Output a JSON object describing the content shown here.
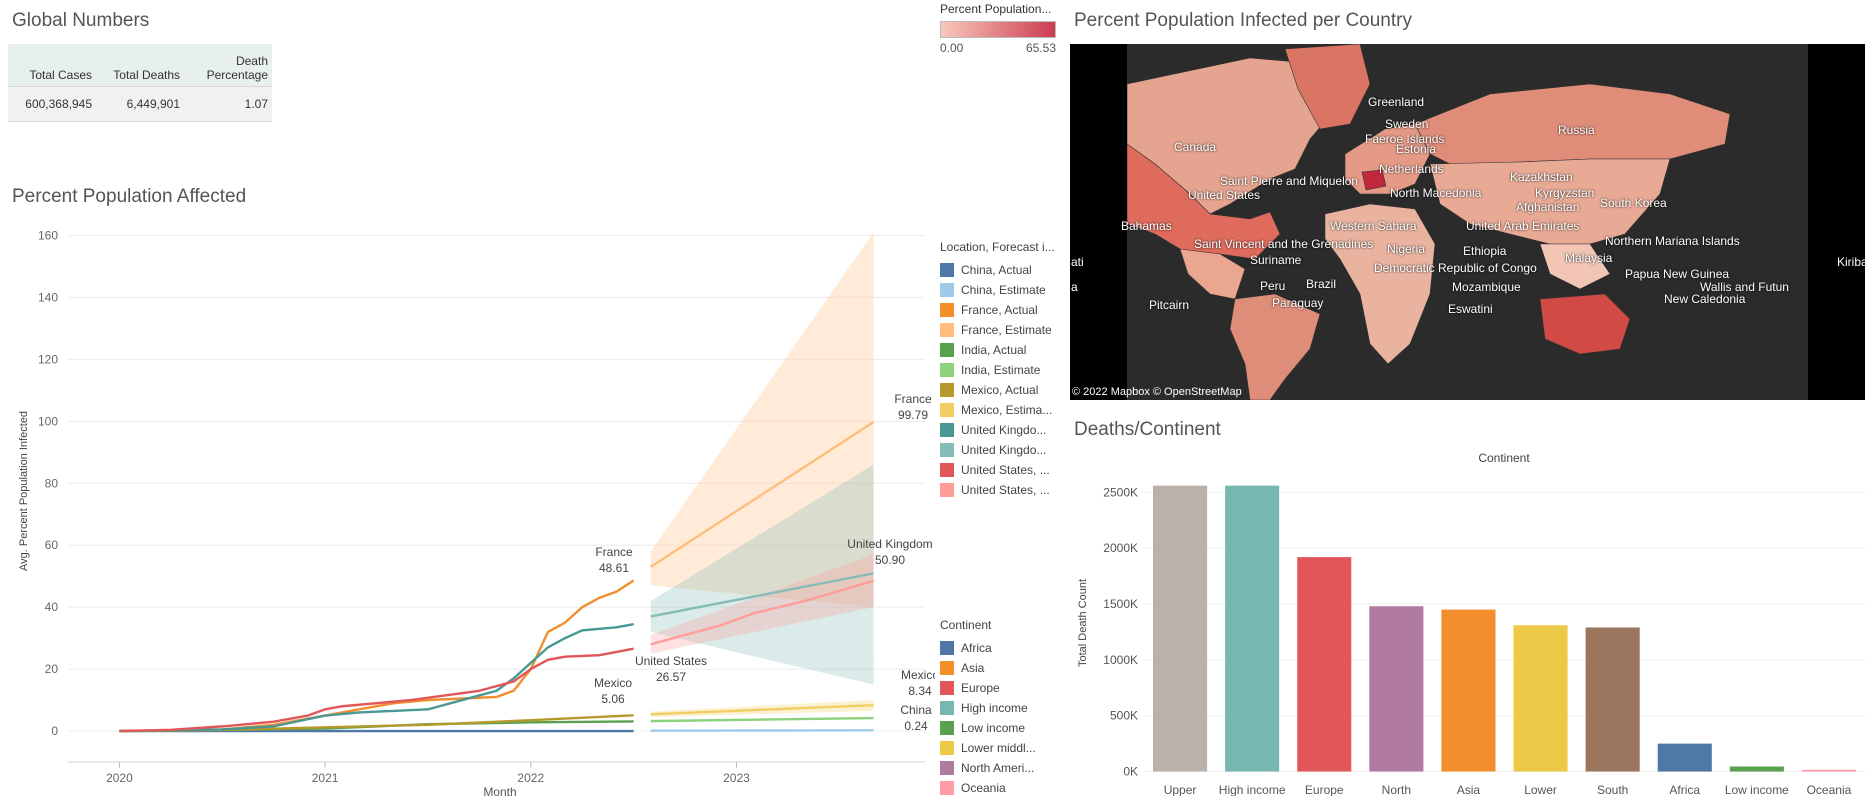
{
  "global_numbers": {
    "title": "Global Numbers",
    "headers": [
      "Total Cases",
      "Total Deaths",
      "Death Percentage"
    ],
    "values": [
      "600,368,945",
      "6,449,901",
      "1.07"
    ]
  },
  "pct_legend": {
    "title": "Percent Population...",
    "min": "0.00",
    "max": "65.53",
    "colors": [
      "#f8c9bd",
      "#cc3d52"
    ]
  },
  "location_legend": {
    "title": "Location, Forecast i...",
    "items": [
      {
        "label": "China, Actual",
        "color": "#4e79a7"
      },
      {
        "label": "China, Estimate",
        "color": "#a0cbe8"
      },
      {
        "label": "France, Actual",
        "color": "#f28e2b"
      },
      {
        "label": "France, Estimate",
        "color": "#ffbe7d"
      },
      {
        "label": "India, Actual",
        "color": "#59a14f"
      },
      {
        "label": "India, Estimate",
        "color": "#8cd17d"
      },
      {
        "label": "Mexico, Actual",
        "color": "#b6992d"
      },
      {
        "label": "Mexico, Estima...",
        "color": "#f1ce63"
      },
      {
        "label": "United Kingdo...",
        "color": "#499894"
      },
      {
        "label": "United Kingdo...",
        "color": "#86bcb6"
      },
      {
        "label": "United States, ...",
        "color": "#e15759"
      },
      {
        "label": "United States, ...",
        "color": "#ff9d9a"
      }
    ]
  },
  "continent_legend": {
    "title": "Continent",
    "items": [
      {
        "label": "Africa",
        "color": "#4e79a7"
      },
      {
        "label": "Asia",
        "color": "#f28e2b"
      },
      {
        "label": "Europe",
        "color": "#e15759"
      },
      {
        "label": "High income",
        "color": "#76b7b2"
      },
      {
        "label": "Low income",
        "color": "#59a14f"
      },
      {
        "label": "Lower middl...",
        "color": "#edc948"
      },
      {
        "label": "North Ameri...",
        "color": "#b07aa1"
      },
      {
        "label": "Oceania",
        "color": "#ff9da7"
      }
    ]
  },
  "map": {
    "title": "Percent Population Infected per Country",
    "credit": "© 2022 Mapbox  © OpenStreetMap",
    "labels": [
      "Greenland",
      "Sweden",
      "Faeroe Islands",
      "Estonia",
      "Russia",
      "Canada",
      "Netherlands",
      "Kazakhstan",
      "Saint Pierre and Miquelon",
      "Kyrgyzstan",
      "North Macedonia",
      "United States",
      "Afghanistan",
      "South Korea",
      "Bahamas",
      "Western Sahara",
      "United Arab Emirates",
      "Saint Vincent and the Grenadines",
      "Nigeria",
      "Ethiopia",
      "Northern Mariana Islands",
      "Suriname",
      "Malaysia",
      "Democratic Republic of Congo",
      "ati",
      "Kiriba",
      "Papua New Guinea",
      "a",
      "Peru",
      "Brazil",
      "Mozambique",
      "Wallis and Futun",
      "Paraguay",
      "New Caledonia",
      "Pitcairn",
      "Eswatini"
    ]
  },
  "chart_data": [
    {
      "type": "line",
      "title": "Percent Population Affected",
      "xlabel": "Month",
      "ylabel": "Avg. Percent Population Infected",
      "ylim": [
        -10,
        165
      ],
      "yticks": [
        0,
        20,
        40,
        60,
        80,
        100,
        120,
        140,
        160
      ],
      "xlim": [
        "2019-10",
        "2023-12"
      ],
      "xticks": [
        "2020",
        "2021",
        "2022",
        "2023"
      ],
      "grid": true,
      "series": [
        {
          "name": "China, Actual",
          "color": "#4e79a7",
          "points": [
            [
              "2020-01",
              0
            ],
            [
              "2021-01",
              0
            ],
            [
              "2022-01",
              0
            ],
            [
              "2022-07",
              0
            ]
          ]
        },
        {
          "name": "China, Estimate",
          "color": "#a0cbe8",
          "points": [
            [
              "2022-08",
              0.1
            ],
            [
              "2023-09",
              0.24
            ]
          ]
        },
        {
          "name": "France, Actual",
          "color": "#f28e2b",
          "points": [
            [
              "2020-01",
              0
            ],
            [
              "2020-07",
              0.5
            ],
            [
              "2020-10",
              2
            ],
            [
              "2021-01",
              5
            ],
            [
              "2021-03",
              7
            ],
            [
              "2021-05",
              9
            ],
            [
              "2021-07",
              10
            ],
            [
              "2021-09",
              10.5
            ],
            [
              "2021-11",
              11
            ],
            [
              "2021-12",
              13
            ],
            [
              "2022-01",
              20
            ],
            [
              "2022-02",
              32
            ],
            [
              "2022-03",
              35
            ],
            [
              "2022-04",
              40
            ],
            [
              "2022-05",
              43
            ],
            [
              "2022-06",
              45
            ],
            [
              "2022-07",
              48.61
            ]
          ]
        },
        {
          "name": "France, Estimate",
          "color": "#ffbe7d",
          "points": [
            [
              "2022-08",
              53
            ],
            [
              "2023-09",
              99.79
            ]
          ],
          "band": [
            [
              "2022-08",
              47,
              58
            ],
            [
              "2023-09",
              40,
              161
            ]
          ]
        },
        {
          "name": "India, Actual",
          "color": "#59a14f",
          "points": [
            [
              "2020-01",
              0
            ],
            [
              "2021-01",
              0.8
            ],
            [
              "2021-07",
              2.2
            ],
            [
              "2022-01",
              2.8
            ],
            [
              "2022-07",
              3.1
            ]
          ]
        },
        {
          "name": "India, Estimate",
          "color": "#8cd17d",
          "points": [
            [
              "2022-08",
              3.2
            ],
            [
              "2023-09",
              4.2
            ]
          ]
        },
        {
          "name": "Mexico, Actual",
          "color": "#b6992d",
          "points": [
            [
              "2020-01",
              0
            ],
            [
              "2020-07",
              0.3
            ],
            [
              "2021-01",
              1.2
            ],
            [
              "2021-07",
              2
            ],
            [
              "2022-01",
              3.5
            ],
            [
              "2022-07",
              5.06
            ]
          ]
        },
        {
          "name": "Mexico, Estima...",
          "color": "#f1ce63",
          "points": [
            [
              "2022-08",
              5.4
            ],
            [
              "2023-09",
              8.34
            ]
          ],
          "band": [
            [
              "2022-08",
              4.5,
              6.3
            ],
            [
              "2023-09",
              6.5,
              10
            ]
          ]
        },
        {
          "name": "United Kingdo...",
          "color": "#499894",
          "points": [
            [
              "2020-01",
              0
            ],
            [
              "2020-07",
              0.5
            ],
            [
              "2020-10",
              1.5
            ],
            [
              "2021-01",
              5
            ],
            [
              "2021-03",
              6
            ],
            [
              "2021-05",
              6.5
            ],
            [
              "2021-07",
              7
            ],
            [
              "2021-09",
              10
            ],
            [
              "2021-11",
              13
            ],
            [
              "2021-12",
              17
            ],
            [
              "2022-01",
              22
            ],
            [
              "2022-02",
              27
            ],
            [
              "2022-03",
              30
            ],
            [
              "2022-04",
              32.5
            ],
            [
              "2022-05",
              33
            ],
            [
              "2022-06",
              33.5
            ],
            [
              "2022-07",
              34.5
            ]
          ]
        },
        {
          "name": "United Kingdo...",
          "color": "#86bcb6",
          "points": [
            [
              "2022-08",
              37
            ],
            [
              "2023-09",
              50.9
            ]
          ],
          "band": [
            [
              "2022-08",
              32,
              42
            ],
            [
              "2023-09",
              15,
              86
            ]
          ]
        },
        {
          "name": "United States, ...",
          "color": "#e15759",
          "points": [
            [
              "2020-01",
              0
            ],
            [
              "2020-04",
              0.4
            ],
            [
              "2020-07",
              1.5
            ],
            [
              "2020-10",
              3
            ],
            [
              "2020-12",
              5
            ],
            [
              "2021-01",
              7
            ],
            [
              "2021-02",
              8
            ],
            [
              "2021-04",
              9
            ],
            [
              "2021-06",
              10
            ],
            [
              "2021-08",
              11.5
            ],
            [
              "2021-10",
              13
            ],
            [
              "2021-12",
              16
            ],
            [
              "2022-01",
              20
            ],
            [
              "2022-02",
              23
            ],
            [
              "2022-03",
              24
            ],
            [
              "2022-05",
              24.5
            ],
            [
              "2022-07",
              26.57
            ]
          ]
        },
        {
          "name": "United States, ...",
          "color": "#ff9d9a",
          "points": [
            [
              "2022-08",
              28
            ],
            [
              "2022-10",
              31
            ],
            [
              "2022-12",
              34
            ],
            [
              "2023-02",
              38
            ],
            [
              "2023-05",
              42
            ],
            [
              "2023-09",
              48.5
            ]
          ],
          "band": [
            [
              "2022-08",
              25,
              31
            ],
            [
              "2023-09",
              40,
              57
            ]
          ]
        }
      ],
      "annotations": [
        {
          "text": "France",
          "value": "48.61"
        },
        {
          "text": "France",
          "value": "99.79"
        },
        {
          "text": "United Kingdom",
          "value": "50.90"
        },
        {
          "text": "United States",
          "value": "26.57"
        },
        {
          "text": "Mexico",
          "value": "5.06"
        },
        {
          "text": "Mexico",
          "value": "8.34"
        },
        {
          "text": "China",
          "value": "0.24"
        }
      ]
    },
    {
      "type": "bar",
      "title": "Deaths/Continent",
      "column_header": "Continent",
      "ylabel": "Total Death Count",
      "ylim": [
        -40000,
        2700000
      ],
      "yticks": [
        0,
        500000,
        1000000,
        1500000,
        2000000,
        2500000
      ],
      "ytick_labels": [
        "0K",
        "500K",
        "1000K",
        "1500K",
        "2000K",
        "2500K"
      ],
      "categories": [
        "Upper",
        "High income",
        "Europe",
        "North",
        "Asia",
        "Lower",
        "South",
        "Africa",
        "Low income",
        "Oceania"
      ],
      "values": [
        2560000,
        2560000,
        1920000,
        1480000,
        1450000,
        1310000,
        1290000,
        250000,
        45000,
        15000
      ],
      "colors": [
        "#bab0ac",
        "#76b7b2",
        "#e15759",
        "#b07aa1",
        "#f28e2b",
        "#edc948",
        "#9c755f",
        "#4e79a7",
        "#59a14f",
        "#ff9da7"
      ]
    }
  ]
}
